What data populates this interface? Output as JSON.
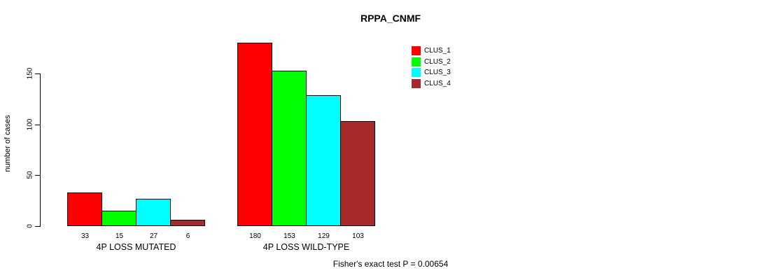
{
  "title": "RPPA_CNMF",
  "ylabel": "number of cases",
  "annotation": "Fisher's exact test P = 0.00654",
  "chart_data": {
    "type": "bar",
    "title": "RPPA_CNMF",
    "xlabel": "",
    "ylabel": "number of cases",
    "ylim": [
      0,
      180
    ],
    "yticks": [
      0,
      50,
      100,
      150
    ],
    "grid": false,
    "legend_position": "top-right",
    "series": [
      {
        "name": "CLUS_1",
        "color": "#ff0000"
      },
      {
        "name": "CLUS_2",
        "color": "#00ff00"
      },
      {
        "name": "CLUS_3",
        "color": "#00ffff"
      },
      {
        "name": "CLUS_4",
        "color": "#a52a2a"
      }
    ],
    "groups": [
      {
        "label": "4P LOSS MUTATED",
        "values": [
          33,
          15,
          27,
          6
        ]
      },
      {
        "label": "4P LOSS WILD-TYPE",
        "values": [
          180,
          153,
          129,
          103
        ]
      }
    ],
    "annotation": "Fisher's exact test P = 0.00654"
  }
}
